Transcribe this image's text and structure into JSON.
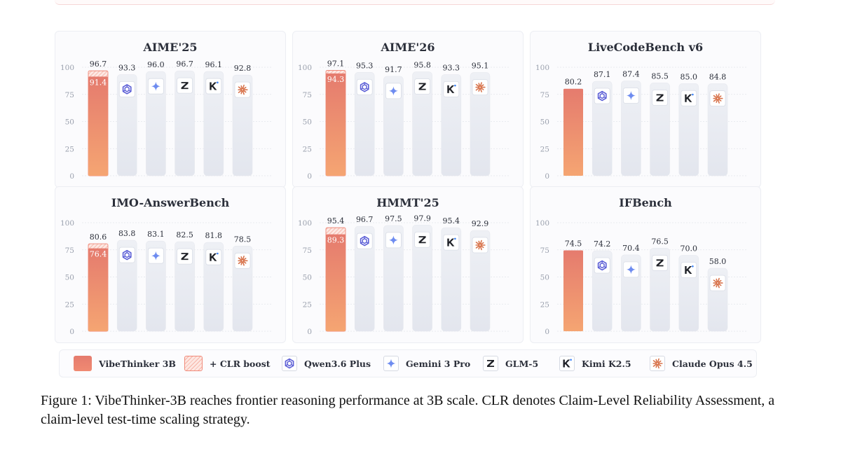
{
  "chart_data": [
    {
      "type": "bar",
      "title": "AIME'25",
      "ylim": [
        0,
        100
      ],
      "yticks": [
        0,
        25,
        50,
        75,
        100
      ],
      "categories": [
        "VibeThinker 3B",
        "Qwen3.6 Plus",
        "Gemini 3 Pro",
        "GLM-5",
        "Kimi K2.5",
        "Claude Opus 4.5"
      ],
      "values": [
        91.4,
        93.3,
        96.0,
        96.7,
        96.1,
        92.8
      ],
      "clr_boost": 96.7,
      "labels": [
        "91.4",
        "93.3",
        "96.0",
        "96.7",
        "96.1",
        "92.8"
      ],
      "clr_label": "96.7"
    },
    {
      "type": "bar",
      "title": "AIME'26",
      "ylim": [
        0,
        100
      ],
      "yticks": [
        0,
        25,
        50,
        75,
        100
      ],
      "categories": [
        "VibeThinker 3B",
        "Qwen3.6 Plus",
        "Gemini 3 Pro",
        "GLM-5",
        "Kimi K2.5",
        "Claude Opus 4.5"
      ],
      "values": [
        94.3,
        95.3,
        91.7,
        95.8,
        93.3,
        95.1
      ],
      "clr_boost": 97.1,
      "labels": [
        "94.3",
        "95.3",
        "91.7",
        "95.8",
        "93.3",
        "95.1"
      ],
      "clr_label": "97.1"
    },
    {
      "type": "bar",
      "title": "LiveCodeBench v6",
      "ylim": [
        0,
        100
      ],
      "yticks": [
        0,
        25,
        50,
        75,
        100
      ],
      "categories": [
        "VibeThinker 3B",
        "Qwen3.6 Plus",
        "Gemini 3 Pro",
        "GLM-5",
        "Kimi K2.5",
        "Claude Opus 4.5"
      ],
      "values": [
        80.2,
        87.1,
        87.4,
        85.5,
        85.0,
        84.8
      ],
      "clr_boost": null,
      "labels": [
        "80.2",
        "87.1",
        "87.4",
        "85.5",
        "85.0",
        "84.8"
      ],
      "clr_label": null
    },
    {
      "type": "bar",
      "title": "IMO-AnswerBench",
      "ylim": [
        0,
        100
      ],
      "yticks": [
        0,
        25,
        50,
        75,
        100
      ],
      "categories": [
        "VibeThinker 3B",
        "Qwen3.6 Plus",
        "Gemini 3 Pro",
        "GLM-5",
        "Kimi K2.5",
        "Claude Opus 4.5"
      ],
      "values": [
        76.4,
        83.8,
        83.1,
        82.5,
        81.8,
        78.5
      ],
      "clr_boost": 80.6,
      "labels": [
        "76.4",
        "83.8",
        "83.1",
        "82.5",
        "81.8",
        "78.5"
      ],
      "clr_label": "80.6"
    },
    {
      "type": "bar",
      "title": "HMMT'25",
      "ylim": [
        0,
        100
      ],
      "yticks": [
        0,
        25,
        50,
        75,
        100
      ],
      "categories": [
        "VibeThinker 3B",
        "Qwen3.6 Plus",
        "Gemini 3 Pro",
        "GLM-5",
        "Kimi K2.5",
        "Claude Opus 4.5"
      ],
      "values": [
        89.3,
        96.7,
        97.5,
        97.9,
        95.4,
        92.9
      ],
      "clr_boost": 95.4,
      "labels": [
        "89.3",
        "96.7",
        "97.5",
        "97.9",
        "95.4",
        "92.9"
      ],
      "clr_label": "95.4"
    },
    {
      "type": "bar",
      "title": "IFBench",
      "ylim": [
        0,
        100
      ],
      "yticks": [
        0,
        25,
        50,
        75,
        100
      ],
      "categories": [
        "VibeThinker 3B",
        "Qwen3.6 Plus",
        "Gemini 3 Pro",
        "GLM-5",
        "Kimi K2.5",
        "Claude Opus 4.5"
      ],
      "values": [
        74.5,
        74.2,
        70.4,
        76.5,
        70.0,
        58.0
      ],
      "clr_boost": null,
      "labels": [
        "74.5",
        "74.2",
        "70.4",
        "76.5",
        "70.0",
        "58.0"
      ],
      "clr_label": null
    }
  ],
  "legend": {
    "vibethinker": "VibeThinker 3B",
    "clr": "+ CLR boost",
    "qwen": "Qwen3.6 Plus",
    "gemini": "Gemini 3 Pro",
    "glm": "GLM-5",
    "kimi": "Kimi K2.5",
    "claude": "Claude Opus 4.5"
  },
  "icons": [
    "qwen-icon",
    "gemini-icon",
    "glm-icon",
    "kimi-icon",
    "claude-icon"
  ],
  "colors": {
    "vibethinker_top": "#e57b6e",
    "vibethinker_bottom": "#f5a572",
    "clr_hatch": "#f08a7a",
    "bar_bg": "#e8eaf1",
    "qwen": "#5b5ed6",
    "gemini": "#6e8cf0",
    "glm": "#1f2127",
    "kimi": "#1f2127",
    "claude": "#d8734b"
  },
  "caption": "Figure 1: VibeThinker-3B reaches frontier reasoning performance at 3B scale. CLR denotes Claim-Level Reliability Assessment, a claim-level test-time scaling strategy."
}
